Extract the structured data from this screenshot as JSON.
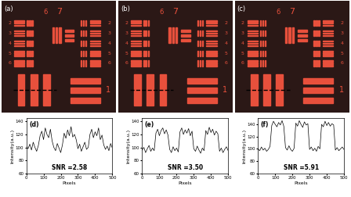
{
  "images": [
    {
      "label": "(a)",
      "top_labels": [
        "6",
        "7"
      ],
      "left_labels": [
        "2",
        "3",
        "4",
        "5",
        "6"
      ],
      "right_labels": [
        "2",
        "3",
        "4",
        "5",
        "6"
      ],
      "bottom_label": "1"
    },
    {
      "label": "(b)",
      "top_labels": [
        "6",
        "7"
      ],
      "left_labels": [
        "2",
        "3",
        "4",
        "5",
        "6"
      ],
      "right_labels": [
        "2",
        "3",
        "4",
        "5",
        "6"
      ],
      "bottom_label": "1"
    },
    {
      "label": "(c)",
      "top_labels": [
        "6",
        "7"
      ],
      "left_labels": [
        "2",
        "3",
        "4",
        "5",
        "6"
      ],
      "right_labels": [
        "2",
        "3",
        "4",
        "5",
        "6"
      ],
      "bottom_label": "1"
    }
  ],
  "chart_data": [
    {
      "type": "line",
      "label": "(d)",
      "x_label": "Pixels",
      "y_label": "Intensity(a.u.)",
      "annotation": "SNR =2.58",
      "color": "#000000",
      "x": [
        0,
        10,
        20,
        30,
        40,
        50,
        60,
        70,
        80,
        90,
        100,
        110,
        120,
        130,
        140,
        150,
        160,
        170,
        180,
        190,
        200,
        210,
        220,
        230,
        240,
        250,
        260,
        270,
        280,
        290,
        300,
        310,
        320,
        330,
        340,
        350,
        360,
        370,
        380,
        390,
        400,
        410,
        420,
        430,
        440,
        450,
        460,
        470,
        480,
        490,
        500
      ],
      "values": [
        102,
        98,
        105,
        96,
        108,
        100,
        94,
        103,
        118,
        125,
        112,
        130,
        120,
        115,
        128,
        110,
        100,
        95,
        106,
        99,
        92,
        104,
        122,
        114,
        127,
        118,
        132,
        116,
        120,
        112,
        98,
        105,
        94,
        101,
        108,
        97,
        100,
        120,
        128,
        115,
        124,
        118,
        130,
        112,
        119,
        104,
        97,
        102,
        95,
        106,
        99
      ],
      "xlim": [
        0,
        500
      ],
      "xticks": [
        0,
        100,
        200,
        300,
        400,
        500
      ],
      "ylim": [
        60,
        145
      ],
      "yticks": [
        60,
        80,
        100,
        120,
        140
      ]
    },
    {
      "type": "line",
      "label": "(e)",
      "x_label": "Pixels",
      "y_label": "Intensity(a.u.)",
      "annotation": "SNR =3.50",
      "color": "#000000",
      "x": [
        0,
        10,
        20,
        30,
        40,
        50,
        60,
        70,
        80,
        90,
        100,
        110,
        120,
        130,
        140,
        150,
        160,
        170,
        180,
        190,
        200,
        210,
        220,
        230,
        240,
        250,
        260,
        270,
        280,
        290,
        300,
        310,
        320,
        330,
        340,
        350,
        360,
        370,
        380,
        390,
        400,
        410,
        420,
        430,
        440,
        450,
        460,
        470,
        480,
        490,
        500
      ],
      "values": [
        96,
        100,
        92,
        98,
        103,
        94,
        99,
        95,
        122,
        128,
        118,
        126,
        130,
        121,
        127,
        119,
        97,
        92,
        101,
        95,
        99,
        93,
        124,
        130,
        120,
        127,
        122,
        129,
        118,
        125,
        98,
        94,
        102,
        96,
        91,
        99,
        95,
        126,
        120,
        131,
        123,
        128,
        119,
        125,
        121,
        94,
        99,
        92,
        97,
        101,
        95
      ],
      "xlim": [
        0,
        500
      ],
      "xticks": [
        0,
        100,
        200,
        300,
        400,
        500
      ],
      "ylim": [
        60,
        145
      ],
      "yticks": [
        60,
        80,
        100,
        120,
        140
      ]
    },
    {
      "type": "line",
      "label": "(f)",
      "x_label": "Pixels",
      "y_label": "Intensity(a.u.)",
      "annotation": "SNR =5.91",
      "color": "#000000",
      "x": [
        0,
        10,
        20,
        30,
        40,
        50,
        60,
        70,
        80,
        90,
        100,
        110,
        120,
        130,
        140,
        150,
        160,
        170,
        180,
        190,
        200,
        210,
        220,
        230,
        240,
        250,
        260,
        270,
        280,
        290,
        300,
        310,
        320,
        330,
        340,
        350,
        360,
        370,
        380,
        390,
        400,
        410,
        420,
        430,
        440,
        450,
        460,
        470,
        480,
        490,
        500
      ],
      "values": [
        100,
        97,
        103,
        98,
        101,
        96,
        99,
        104,
        138,
        145,
        140,
        136,
        143,
        139,
        146,
        137,
        102,
        98,
        105,
        99,
        96,
        101,
        142,
        137,
        146,
        140,
        135,
        144,
        139,
        141,
        99,
        103,
        97,
        101,
        96,
        104,
        100,
        140,
        136,
        145,
        138,
        143,
        137,
        141,
        139,
        98,
        102,
        97,
        100,
        103,
        99
      ],
      "xlim": [
        0,
        500
      ],
      "xticks": [
        0,
        100,
        200,
        300,
        400,
        500
      ],
      "ylim": [
        60,
        150
      ],
      "yticks": [
        60,
        80,
        100,
        120,
        140
      ]
    }
  ]
}
